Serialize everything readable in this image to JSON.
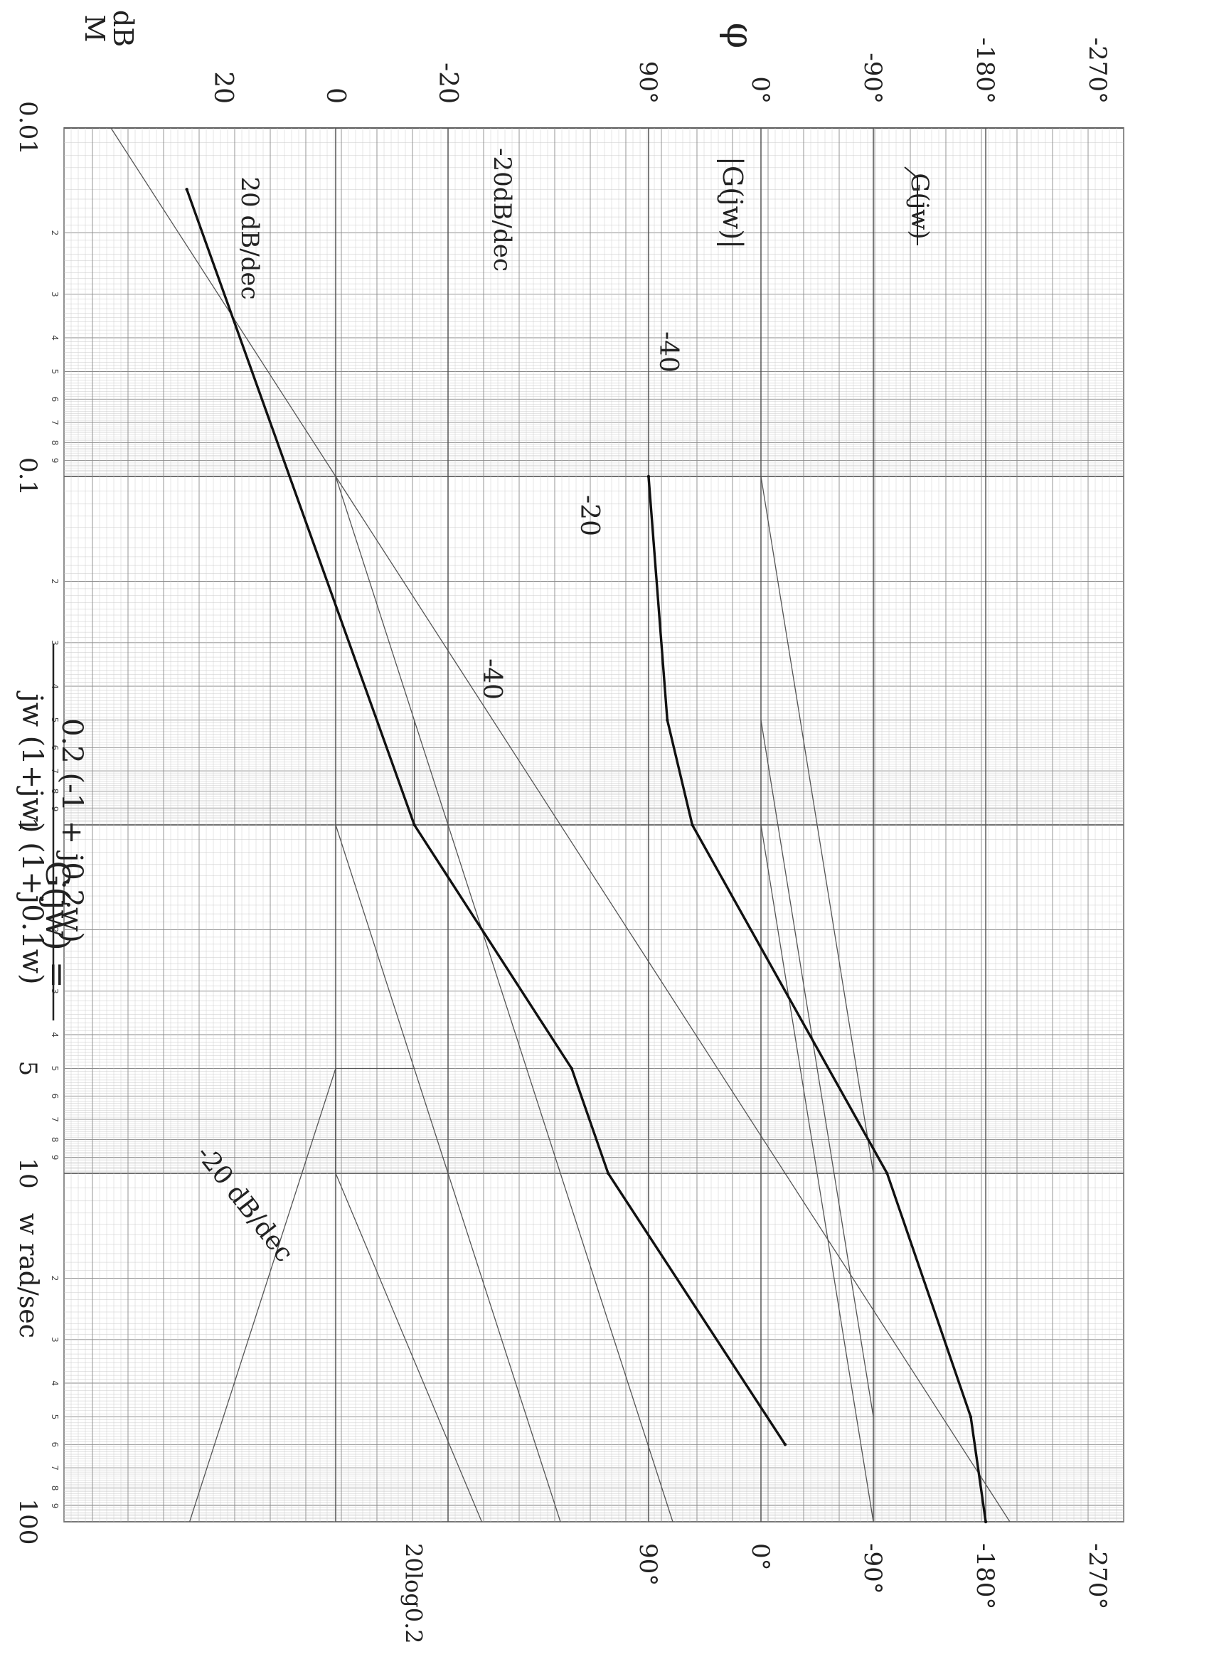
{
  "chart_data": {
    "type": "line",
    "x_scale": "log",
    "xlabel": "w rad/sec",
    "xlim": [
      0.01,
      100
    ],
    "decade_labels": [
      "0.01",
      "0.1",
      "1",
      "10",
      "100"
    ],
    "minor_tick_labels": [
      "2",
      "3",
      "4",
      "5",
      "6",
      "7",
      "8",
      "9"
    ],
    "tick_5": "5",
    "equation": {
      "lhs": "G(jw) =",
      "numerator": "0.2 (-1 + j0.2w)",
      "denominator": "jw (1+jw) (1+j0.1w)"
    },
    "magnitude_axis": {
      "label_line1": "M",
      "label_line2": "dB",
      "ticks": [
        {
          "value": 20,
          "label": "20"
        },
        {
          "value": 0,
          "label": "0"
        },
        {
          "value": -20,
          "label": "-20"
        }
      ],
      "top_label": "20log0.2"
    },
    "phase_axis": {
      "label": "φ",
      "ticks": [
        {
          "value": 90,
          "label": "90°"
        },
        {
          "value": 0,
          "label": "0°"
        },
        {
          "value": -90,
          "label": "-90°"
        },
        {
          "value": -180,
          "label": "-180°"
        },
        {
          "value": -270,
          "label": "-270°"
        }
      ]
    },
    "series": [
      {
        "name": "|G(jw)|",
        "axis": "magnitude",
        "style": "bold",
        "x": [
          0.015,
          1,
          5,
          10,
          60
        ],
        "y": [
          26.5,
          -14,
          -42,
          -48.5,
          -80
        ]
      },
      {
        "name": "∠G(jw)",
        "axis": "phase",
        "style": "bold",
        "x": [
          0.1,
          0.5,
          1,
          10,
          50,
          100
        ],
        "y": [
          90,
          75,
          55,
          -101,
          -168,
          -180
        ]
      }
    ],
    "asymptotes": [
      {
        "axis": "magnitude",
        "x": [
          0.01,
          100
        ],
        "y": [
          40,
          -120
        ]
      },
      {
        "axis": "magnitude",
        "x": [
          1,
          1
        ],
        "y": [
          0,
          -14
        ]
      },
      {
        "axis": "magnitude",
        "x": [
          5,
          5
        ],
        "y": [
          0,
          -14
        ]
      },
      {
        "axis": "magnitude",
        "x": [
          10,
          10
        ],
        "y": [
          0,
          -14
        ]
      },
      {
        "axis": "magnitude",
        "x": [
          10,
          5,
          5,
          100
        ],
        "y": [
          0,
          0,
          0,
          26
        ]
      },
      {
        "axis": "magnitude",
        "x": [
          5,
          10,
          100
        ],
        "y": [
          0,
          0,
          -26
        ]
      },
      {
        "axis": "magnitude",
        "x": [
          1,
          100
        ],
        "y": [
          0,
          -40
        ]
      },
      {
        "axis": "magnitude",
        "x": [
          0.1,
          100
        ],
        "y": [
          0,
          -60
        ]
      },
      {
        "axis": "magnitude",
        "x": [
          0.5,
          1
        ],
        "y": [
          -14,
          -14
        ]
      },
      {
        "axis": "phase",
        "x": [
          0.1,
          10
        ],
        "y": [
          0,
          -90
        ]
      },
      {
        "axis": "phase",
        "x": [
          0.5,
          50
        ],
        "y": [
          0,
          -90
        ]
      },
      {
        "axis": "phase",
        "x": [
          1,
          100
        ],
        "y": [
          0,
          -90
        ]
      }
    ],
    "annotations": {
      "slope_low": "-20 dB/dec",
      "slope_up": "20 dB/dec",
      "slope_down": "-20dB/dec",
      "seg1": "-40",
      "seg2": "-20",
      "seg3": "-40",
      "mag_label": "|G(jw)|",
      "phase_label": "G(jw)"
    },
    "grid": true
  }
}
